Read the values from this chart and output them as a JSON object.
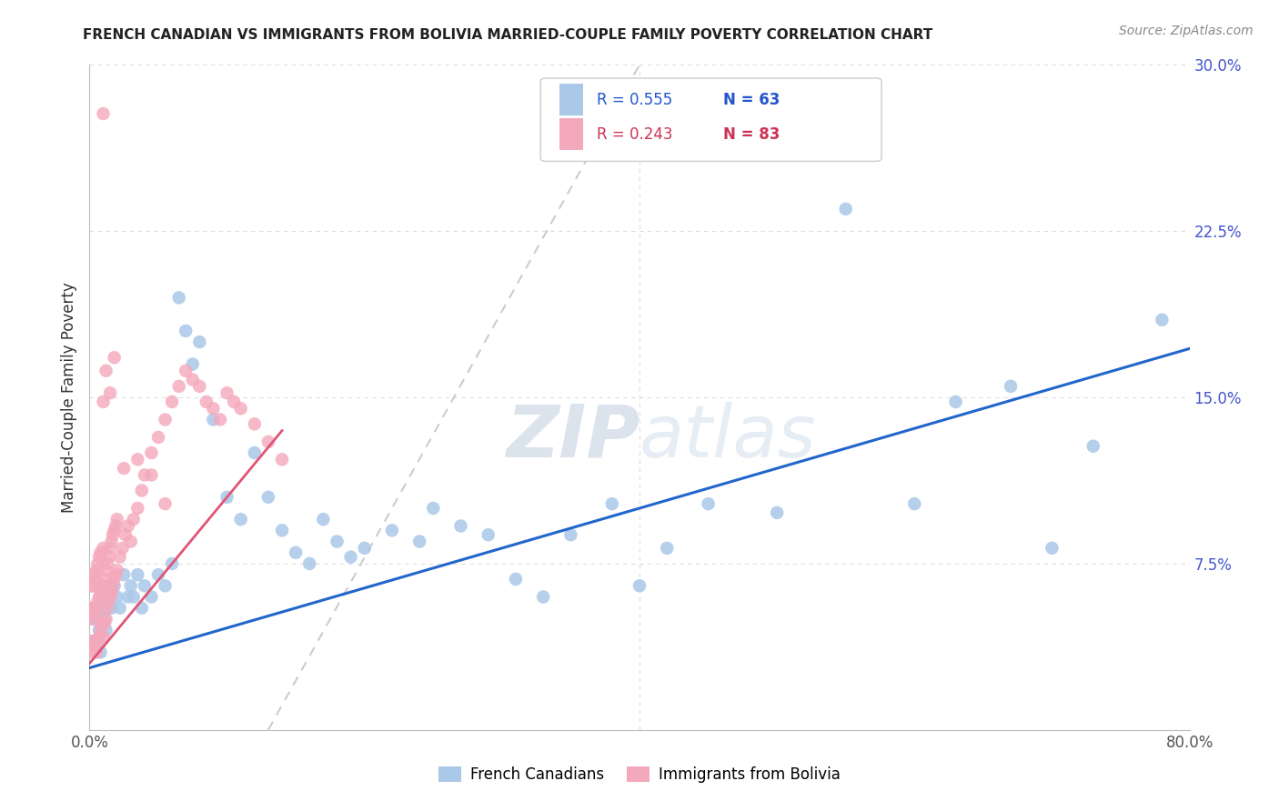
{
  "title": "FRENCH CANADIAN VS IMMIGRANTS FROM BOLIVIA MARRIED-COUPLE FAMILY POVERTY CORRELATION CHART",
  "source": "Source: ZipAtlas.com",
  "ylabel": "Married-Couple Family Poverty",
  "x_min": 0.0,
  "x_max": 0.8,
  "y_min": 0.0,
  "y_max": 0.3,
  "y_ticks_right": [
    0.0,
    0.075,
    0.15,
    0.225,
    0.3
  ],
  "y_tick_labels_right": [
    "",
    "7.5%",
    "15.0%",
    "22.5%",
    "30.0%"
  ],
  "legend_labels": [
    "French Canadians",
    "Immigrants from Bolivia"
  ],
  "blue_scatter_color": "#aac8e8",
  "pink_scatter_color": "#f4a8bb",
  "blue_line_color": "#2266cc",
  "pink_line_color": "#e05575",
  "ref_line_color": "#cccccc",
  "watermark_color": "#cdd8e8",
  "grid_color": "#dddddd",
  "blue_line_x0": 0.0,
  "blue_line_x1": 0.8,
  "blue_line_y0": 0.028,
  "blue_line_y1": 0.172,
  "pink_line_x0": 0.0,
  "pink_line_x1": 0.14,
  "pink_line_y0": 0.03,
  "pink_line_y1": 0.135,
  "ref_line_x0": 0.13,
  "ref_line_x1": 0.4,
  "ref_line_y0": 0.0,
  "ref_line_y1": 0.3,
  "blue_points_x": [
    0.002,
    0.004,
    0.005,
    0.006,
    0.007,
    0.008,
    0.009,
    0.01,
    0.011,
    0.012,
    0.013,
    0.015,
    0.016,
    0.018,
    0.02,
    0.022,
    0.025,
    0.028,
    0.03,
    0.032,
    0.035,
    0.038,
    0.04,
    0.045,
    0.05,
    0.055,
    0.06,
    0.065,
    0.07,
    0.075,
    0.08,
    0.09,
    0.1,
    0.11,
    0.12,
    0.13,
    0.14,
    0.15,
    0.16,
    0.17,
    0.18,
    0.19,
    0.2,
    0.22,
    0.24,
    0.25,
    0.27,
    0.29,
    0.31,
    0.33,
    0.35,
    0.38,
    0.4,
    0.42,
    0.45,
    0.5,
    0.55,
    0.6,
    0.63,
    0.67,
    0.7,
    0.73,
    0.78
  ],
  "blue_points_y": [
    0.04,
    0.05,
    0.055,
    0.04,
    0.045,
    0.035,
    0.06,
    0.055,
    0.05,
    0.045,
    0.06,
    0.065,
    0.055,
    0.065,
    0.06,
    0.055,
    0.07,
    0.06,
    0.065,
    0.06,
    0.07,
    0.055,
    0.065,
    0.06,
    0.07,
    0.065,
    0.075,
    0.195,
    0.18,
    0.165,
    0.175,
    0.14,
    0.105,
    0.095,
    0.125,
    0.105,
    0.09,
    0.08,
    0.075,
    0.095,
    0.085,
    0.078,
    0.082,
    0.09,
    0.085,
    0.1,
    0.092,
    0.088,
    0.068,
    0.06,
    0.088,
    0.102,
    0.065,
    0.082,
    0.102,
    0.098,
    0.235,
    0.102,
    0.148,
    0.155,
    0.082,
    0.128,
    0.185
  ],
  "pink_points_x": [
    0.001,
    0.001,
    0.001,
    0.002,
    0.002,
    0.002,
    0.003,
    0.003,
    0.003,
    0.004,
    0.004,
    0.004,
    0.005,
    0.005,
    0.005,
    0.006,
    0.006,
    0.006,
    0.007,
    0.007,
    0.007,
    0.008,
    0.008,
    0.008,
    0.009,
    0.009,
    0.01,
    0.01,
    0.01,
    0.011,
    0.011,
    0.012,
    0.012,
    0.013,
    0.013,
    0.014,
    0.014,
    0.015,
    0.015,
    0.016,
    0.016,
    0.017,
    0.017,
    0.018,
    0.018,
    0.019,
    0.019,
    0.02,
    0.02,
    0.022,
    0.024,
    0.026,
    0.028,
    0.03,
    0.032,
    0.035,
    0.038,
    0.04,
    0.045,
    0.05,
    0.055,
    0.06,
    0.065,
    0.07,
    0.075,
    0.08,
    0.085,
    0.09,
    0.095,
    0.1,
    0.105,
    0.11,
    0.12,
    0.13,
    0.14,
    0.01,
    0.012,
    0.015,
    0.018,
    0.025,
    0.035,
    0.045,
    0.055
  ],
  "pink_points_y": [
    0.04,
    0.055,
    0.065,
    0.035,
    0.05,
    0.065,
    0.04,
    0.055,
    0.07,
    0.038,
    0.052,
    0.068,
    0.035,
    0.055,
    0.072,
    0.04,
    0.058,
    0.075,
    0.042,
    0.06,
    0.078,
    0.045,
    0.062,
    0.08,
    0.048,
    0.065,
    0.042,
    0.065,
    0.082,
    0.048,
    0.068,
    0.05,
    0.072,
    0.055,
    0.075,
    0.058,
    0.078,
    0.06,
    0.082,
    0.062,
    0.085,
    0.065,
    0.088,
    0.068,
    0.09,
    0.07,
    0.092,
    0.072,
    0.095,
    0.078,
    0.082,
    0.088,
    0.092,
    0.085,
    0.095,
    0.1,
    0.108,
    0.115,
    0.125,
    0.132,
    0.14,
    0.148,
    0.155,
    0.162,
    0.158,
    0.155,
    0.148,
    0.145,
    0.14,
    0.152,
    0.148,
    0.145,
    0.138,
    0.13,
    0.122,
    0.148,
    0.162,
    0.152,
    0.168,
    0.118,
    0.122,
    0.115,
    0.102
  ]
}
